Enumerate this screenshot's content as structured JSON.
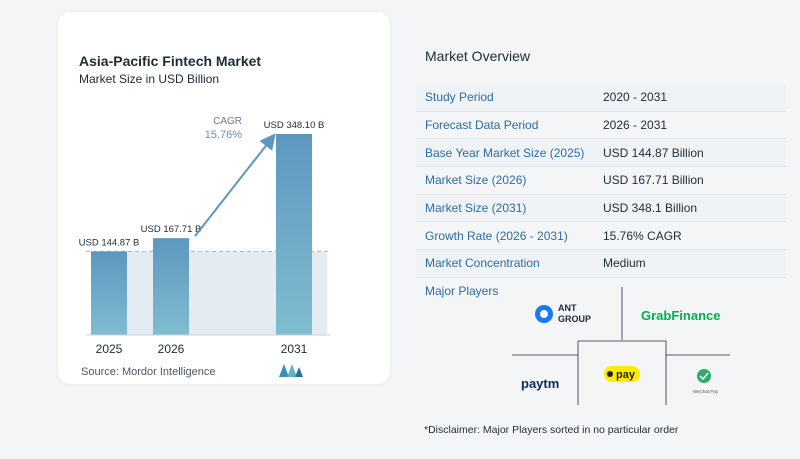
{
  "chart_data": {
    "type": "bar",
    "title": "Asia-Pacific Fintech Market",
    "subtitle": "Market Size in USD Billion",
    "categories": [
      "2025",
      "2026",
      "2031"
    ],
    "values": [
      144.87,
      167.71,
      348.1
    ],
    "value_labels": [
      "USD 144.87 B",
      "USD 167.71 B",
      "USD 348.10 B"
    ],
    "annotation": {
      "label": "CAGR",
      "value": "15.76%"
    },
    "source": "Source:  Mordor Intelligence",
    "colors": {
      "bar_top": "#5d97bf",
      "bar_bottom": "#7fbdd0",
      "shade": "#e3ebf3",
      "arrow": "#5d97bf"
    }
  },
  "overview": {
    "title": "Market Overview",
    "rows": [
      {
        "label": "Study Period",
        "value": "2020 - 2031"
      },
      {
        "label": "Forecast Data Period",
        "value": "2026 - 2031"
      },
      {
        "label": "Base Year Market Size (2025)",
        "value": "USD 144.87 Billion"
      },
      {
        "label": "Market Size (2026)",
        "value": "USD 167.71 Billion"
      },
      {
        "label": "Market Size (2031)",
        "value": "USD 348.1 Billion"
      },
      {
        "label": "Growth Rate (2026 - 2031)",
        "value": "15.76% CAGR"
      },
      {
        "label": "Market Concentration",
        "value": "Medium"
      }
    ]
  },
  "players": {
    "title": "Major Players",
    "logos": [
      {
        "name": "ant-group-logo",
        "text_top": "ANT",
        "text_bottom": "GROUP"
      },
      {
        "name": "grabfinance-logo",
        "text": "GrabFinance"
      },
      {
        "name": "paytm-logo",
        "text": "paytm"
      },
      {
        "name": "kakaopay-logo",
        "text": "pay"
      },
      {
        "name": "wechat-pay-logo",
        "text": "WeChat Pay"
      }
    ]
  },
  "disclaimer": "*Disclaimer: Major Players sorted in no particular order"
}
